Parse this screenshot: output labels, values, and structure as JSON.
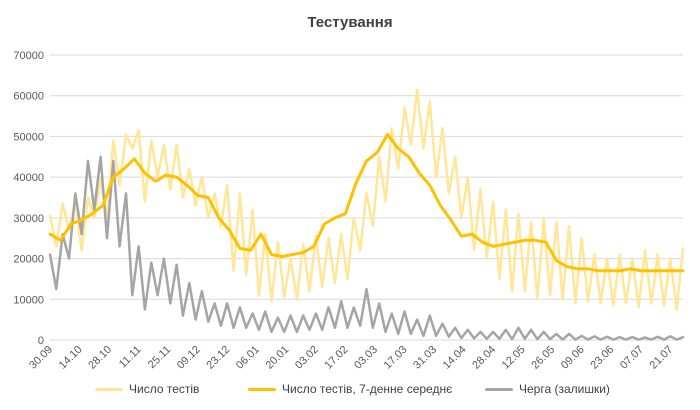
{
  "chart_data": {
    "type": "line",
    "title": "Тестування",
    "xlabel": "",
    "ylabel": "",
    "ylim": [
      0,
      70000
    ],
    "yticks": [
      0,
      10000,
      20000,
      30000,
      40000,
      50000,
      60000,
      70000
    ],
    "yticklabels": [
      "0",
      "10000",
      "20000",
      "30000",
      "40000",
      "50000",
      "60000",
      "70000"
    ],
    "grid": true,
    "legend": "bottom",
    "x_tick_labels": [
      "30.09",
      "14.10",
      "28.10",
      "11.11",
      "25.11",
      "09.12",
      "23.12",
      "06.01",
      "20.01",
      "03.02",
      "17.02",
      "03.03",
      "17.03",
      "31.03",
      "14.04",
      "28.04",
      "12.05",
      "26.05",
      "09.06",
      "23.06",
      "07.07",
      "21.07"
    ],
    "x_range_days": [
      0,
      300
    ],
    "series": [
      {
        "name": "Число тестів",
        "color": "#FFE699",
        "x_days": [
          0,
          3,
          6,
          9,
          12,
          15,
          18,
          21,
          24,
          27,
          30,
          33,
          36,
          39,
          42,
          45,
          48,
          51,
          54,
          57,
          60,
          63,
          66,
          69,
          72,
          75,
          78,
          81,
          84,
          87,
          90,
          93,
          96,
          99,
          102,
          105,
          108,
          111,
          114,
          117,
          120,
          123,
          126,
          129,
          132,
          135,
          138,
          141,
          144,
          147,
          150,
          153,
          156,
          159,
          162,
          165,
          168,
          171,
          174,
          177,
          180,
          183,
          186,
          189,
          192,
          195,
          198,
          201,
          204,
          207,
          210,
          213,
          216,
          219,
          222,
          225,
          228,
          231,
          234,
          237,
          240,
          243,
          246,
          249,
          252,
          255,
          258,
          261,
          264,
          267,
          270,
          273,
          276,
          279,
          282,
          285,
          288,
          291,
          294,
          297,
          300
        ],
        "values": [
          30500,
          23000,
          33500,
          27000,
          34000,
          22000,
          35000,
          30000,
          39500,
          30000,
          49000,
          38000,
          50500,
          47000,
          51500,
          34000,
          49000,
          40000,
          48000,
          37000,
          48000,
          35000,
          42000,
          33000,
          40000,
          30000,
          36000,
          28000,
          38000,
          17000,
          36000,
          16000,
          32000,
          11000,
          26000,
          9500,
          24000,
          10500,
          20000,
          10000,
          23500,
          12000,
          25500,
          13000,
          25000,
          14000,
          26000,
          15000,
          30000,
          22000,
          36000,
          28000,
          45000,
          34000,
          52000,
          42000,
          57000,
          48000,
          61500,
          47000,
          58500,
          40000,
          52000,
          36000,
          45000,
          30000,
          40000,
          22000,
          37000,
          20000,
          34000,
          15000,
          32000,
          12000,
          31000,
          12000,
          29000,
          10000,
          30000,
          11000,
          29000,
          10000,
          28000,
          9000,
          25000,
          9500,
          21000,
          9000,
          20000,
          8500,
          21000,
          9000,
          20000,
          8000,
          22000,
          9000,
          21000,
          8500,
          20000,
          7500,
          22500
        ]
      },
      {
        "name": "Число тестів,  7-денне середнє",
        "color": "#FFC000",
        "x_days": [
          0,
          5,
          10,
          15,
          20,
          25,
          30,
          35,
          40,
          45,
          50,
          55,
          60,
          65,
          70,
          75,
          80,
          85,
          90,
          95,
          100,
          105,
          110,
          115,
          120,
          125,
          130,
          135,
          140,
          145,
          150,
          155,
          160,
          165,
          170,
          175,
          180,
          185,
          190,
          195,
          200,
          205,
          210,
          215,
          220,
          225,
          230,
          235,
          240,
          245,
          250,
          255,
          260,
          265,
          270,
          275,
          280,
          285,
          290,
          295,
          300
        ],
        "values": [
          26000,
          24500,
          28500,
          29500,
          31000,
          33000,
          40000,
          42000,
          44500,
          41000,
          39000,
          40500,
          40000,
          38000,
          35500,
          35000,
          30000,
          27000,
          22500,
          22000,
          26000,
          21000,
          20500,
          21000,
          21500,
          23000,
          28500,
          30000,
          31000,
          38500,
          44000,
          46000,
          50500,
          47000,
          45000,
          41000,
          38000,
          33000,
          29500,
          25500,
          26000,
          24000,
          23000,
          23500,
          24000,
          24500,
          24500,
          24000,
          19500,
          18000,
          17500,
          17500,
          17000,
          17000,
          17000,
          17500,
          17000,
          17000,
          17000,
          17000,
          17000
        ],
        "stroke_width": 3
      },
      {
        "name": "Черга (залишки)",
        "color": "#A5A5A5",
        "x_days": [
          0,
          3,
          6,
          9,
          12,
          15,
          18,
          21,
          24,
          27,
          30,
          33,
          36,
          39,
          42,
          45,
          48,
          51,
          54,
          57,
          60,
          63,
          66,
          69,
          72,
          75,
          78,
          81,
          84,
          87,
          90,
          93,
          96,
          99,
          102,
          105,
          108,
          111,
          114,
          117,
          120,
          123,
          126,
          129,
          132,
          135,
          138,
          141,
          144,
          147,
          150,
          153,
          156,
          159,
          162,
          165,
          168,
          171,
          174,
          177,
          180,
          183,
          186,
          189,
          192,
          195,
          198,
          201,
          204,
          207,
          210,
          213,
          216,
          219,
          222,
          225,
          228,
          231,
          234,
          237,
          240,
          243,
          246,
          249,
          252,
          255,
          258,
          261,
          264,
          267,
          270,
          273,
          276,
          279,
          282,
          285,
          288,
          291,
          294,
          297,
          300
        ],
        "values": [
          21000,
          12500,
          26000,
          20000,
          36000,
          26000,
          44000,
          32000,
          45000,
          25000,
          44000,
          23000,
          36000,
          11000,
          23000,
          7500,
          19000,
          11000,
          20000,
          9000,
          18500,
          6000,
          14000,
          5000,
          12000,
          4500,
          9000,
          3500,
          9000,
          3000,
          8000,
          3000,
          6500,
          2500,
          7000,
          2000,
          5500,
          2000,
          6000,
          2000,
          6000,
          2500,
          6500,
          2500,
          8000,
          3000,
          9500,
          3000,
          8000,
          3500,
          12500,
          3000,
          9000,
          2000,
          6500,
          1500,
          7000,
          1500,
          5000,
          1000,
          6000,
          1000,
          4000,
          800,
          3000,
          500,
          2500,
          400,
          2000,
          300,
          2000,
          300,
          2500,
          200,
          3000,
          300,
          2500,
          200,
          2000,
          200,
          1500,
          100,
          1500,
          100,
          1000,
          100,
          900,
          100,
          800,
          100,
          700,
          100,
          700,
          100,
          600,
          100,
          800,
          100,
          900,
          100,
          700
        ]
      }
    ]
  },
  "legend_items": [
    {
      "label": "Число тестів"
    },
    {
      "label": "Число тестів,  7-денне середнє"
    },
    {
      "label": "Черга (залишки)"
    }
  ]
}
